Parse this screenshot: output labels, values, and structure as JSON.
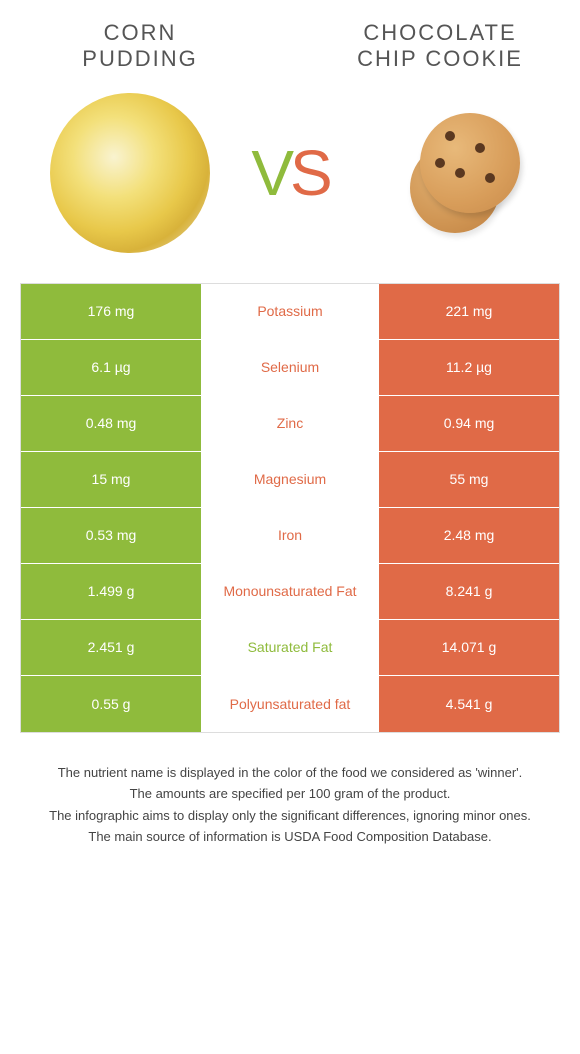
{
  "colors": {
    "left": "#8fbb3c",
    "right": "#e06a47",
    "background": "#ffffff",
    "text": "#333333"
  },
  "food_left": {
    "title_line1": "CORN",
    "title_line2": "PUDDING"
  },
  "food_right": {
    "title_line1": "CHOCOLATE",
    "title_line2": "CHIP COOKIE"
  },
  "vs": {
    "v": "V",
    "s": "S"
  },
  "nutrients": [
    {
      "name": "Potassium",
      "left": "176 mg",
      "right": "221 mg",
      "winner": "right"
    },
    {
      "name": "Selenium",
      "left": "6.1 µg",
      "right": "11.2 µg",
      "winner": "right"
    },
    {
      "name": "Zinc",
      "left": "0.48 mg",
      "right": "0.94 mg",
      "winner": "right"
    },
    {
      "name": "Magnesium",
      "left": "15 mg",
      "right": "55 mg",
      "winner": "right"
    },
    {
      "name": "Iron",
      "left": "0.53 mg",
      "right": "2.48 mg",
      "winner": "right"
    },
    {
      "name": "Monounsaturated Fat",
      "left": "1.499 g",
      "right": "8.241 g",
      "winner": "right"
    },
    {
      "name": "Saturated Fat",
      "left": "2.451 g",
      "right": "14.071 g",
      "winner": "left"
    },
    {
      "name": "Polyunsaturated fat",
      "left": "0.55 g",
      "right": "4.541 g",
      "winner": "right"
    }
  ],
  "footer": {
    "line1": "The nutrient name is displayed in the color of the food we considered as 'winner'.",
    "line2": "The amounts are specified per 100 gram of the product.",
    "line3": "The infographic aims to display only the significant differences, ignoring minor ones.",
    "line4": "The main source of information is USDA Food Composition Database."
  },
  "style": {
    "title_fontsize": 22,
    "vs_fontsize": 64,
    "cell_fontsize": 14,
    "footer_fontsize": 13
  }
}
